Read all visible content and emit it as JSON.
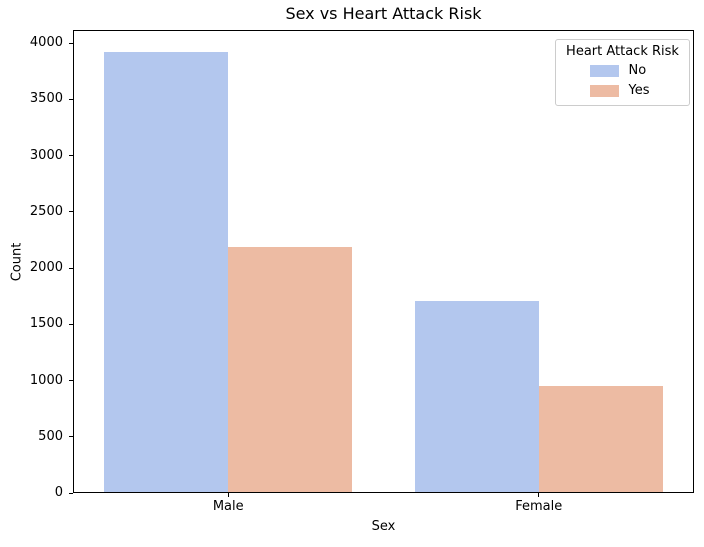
{
  "chart_data": {
    "type": "bar",
    "title": "Sex vs Heart Attack Risk",
    "xlabel": "Sex",
    "ylabel": "Count",
    "categories": [
      "Male",
      "Female"
    ],
    "series": [
      {
        "name": "No",
        "color": "#b3c7ee",
        "values": [
          3921,
          1703
        ]
      },
      {
        "name": "Yes",
        "color": "#edbba3",
        "values": [
          2190,
          949
        ]
      }
    ],
    "yticks": [
      0,
      500,
      1000,
      1500,
      2000,
      2500,
      3000,
      3500,
      4000
    ],
    "ylim": [
      0,
      4117
    ],
    "grid": false,
    "bar_group_width": 0.8,
    "legend": {
      "title": "Heart Attack Risk",
      "position": "upper right",
      "swatch_colors": [
        "#b3c7ee",
        "#edbba3"
      ]
    },
    "spine_color": "#000000",
    "legend_border_color": "#cccccc"
  }
}
